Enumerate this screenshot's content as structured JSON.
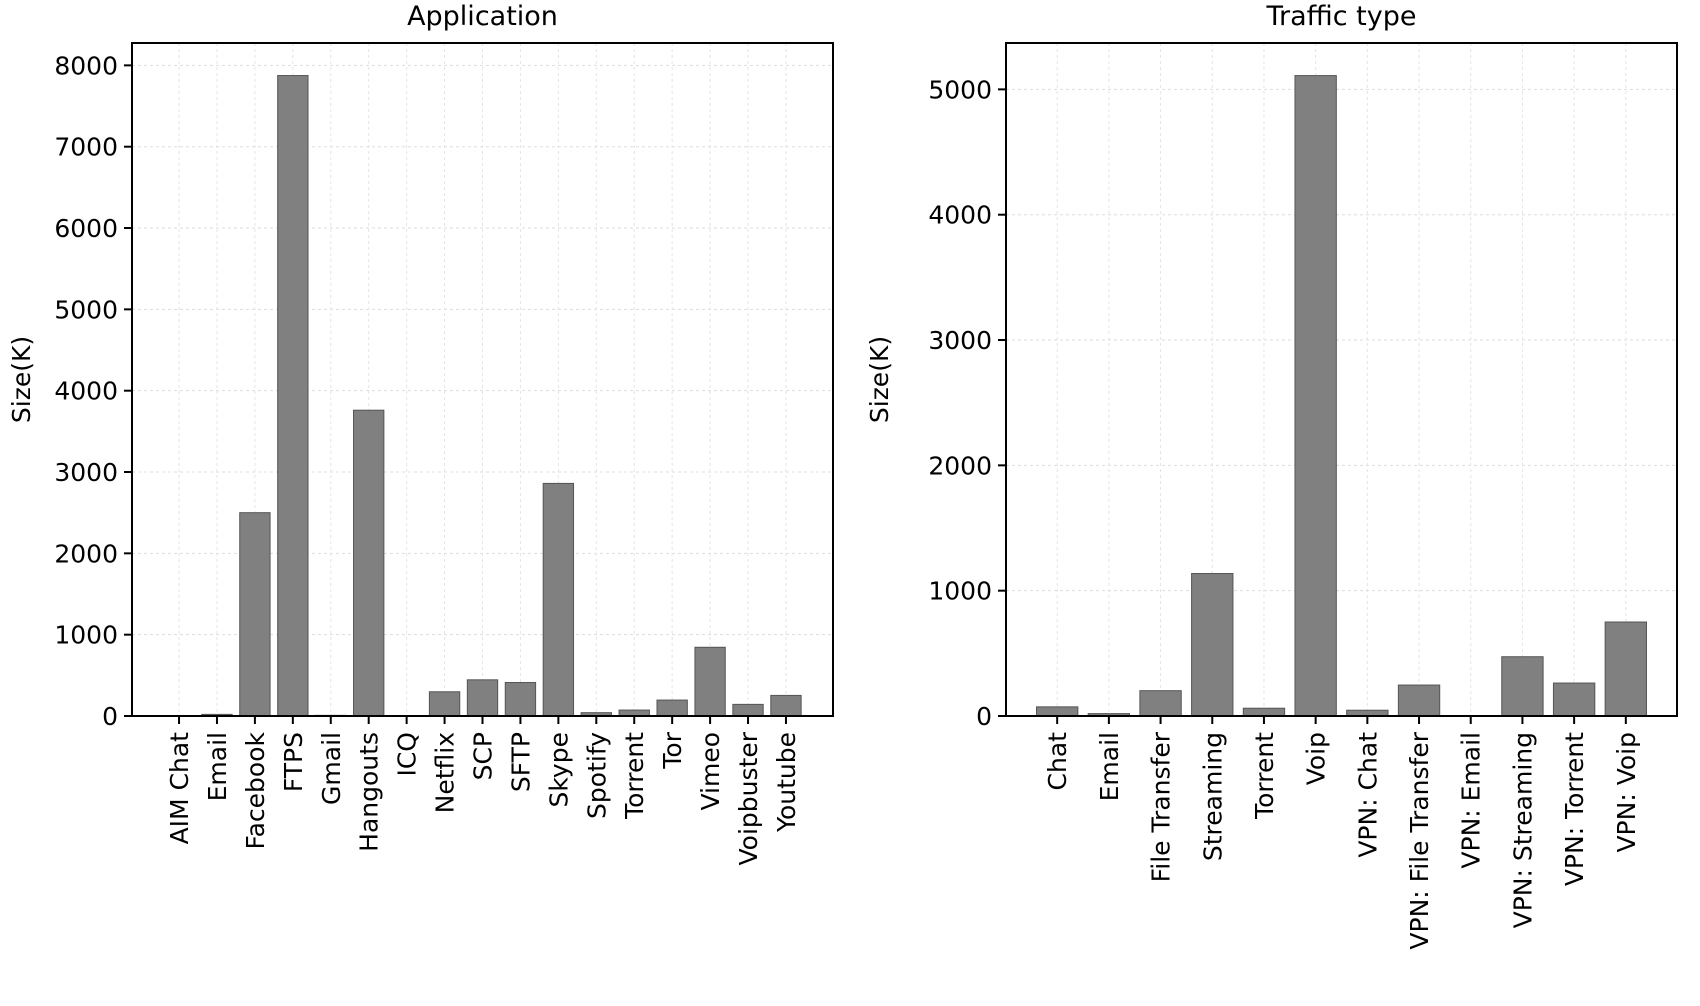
{
  "chart_data": [
    {
      "type": "bar",
      "title": "Application",
      "xlabel": "",
      "ylabel": "Size(K)",
      "categories": [
        "AIM Chat",
        "Email",
        "Facebook",
        "FTPS",
        "Gmail",
        "Hangouts",
        "ICQ",
        "Netflix",
        "SCP",
        "SFTP",
        "Skype",
        "Spotify",
        "Torrent",
        "Tor",
        "Vimeo",
        "Voipbuster",
        "Youtube"
      ],
      "values": [
        2,
        20,
        2500,
        7875,
        8,
        3760,
        2,
        298,
        445,
        412,
        2860,
        41,
        73,
        196,
        845,
        143,
        253
      ],
      "ylim": [
        0,
        8275
      ],
      "yticks": [
        0,
        1000,
        2000,
        3000,
        4000,
        5000,
        6000,
        7000,
        8000
      ],
      "grid": true,
      "bar_color": "#808080"
    },
    {
      "type": "bar",
      "title": "Traffic type",
      "xlabel": "",
      "ylabel": "Size(K)",
      "categories": [
        "Chat",
        "Email",
        "File Transfer",
        "Streaming",
        "Torrent",
        "Voip",
        "VPN: Chat",
        "VPN: File Transfer",
        "VPN: Email",
        "VPN: Streaming",
        "VPN: Torrent",
        "VPN: Voip"
      ],
      "values": [
        73,
        19,
        202,
        1137,
        62,
        5110,
        46,
        247,
        4,
        473,
        263,
        750
      ],
      "ylim": [
        0,
        5370
      ],
      "yticks": [
        0,
        1000,
        2000,
        3000,
        4000,
        5000
      ],
      "grid": true,
      "bar_color": "#808080"
    }
  ]
}
